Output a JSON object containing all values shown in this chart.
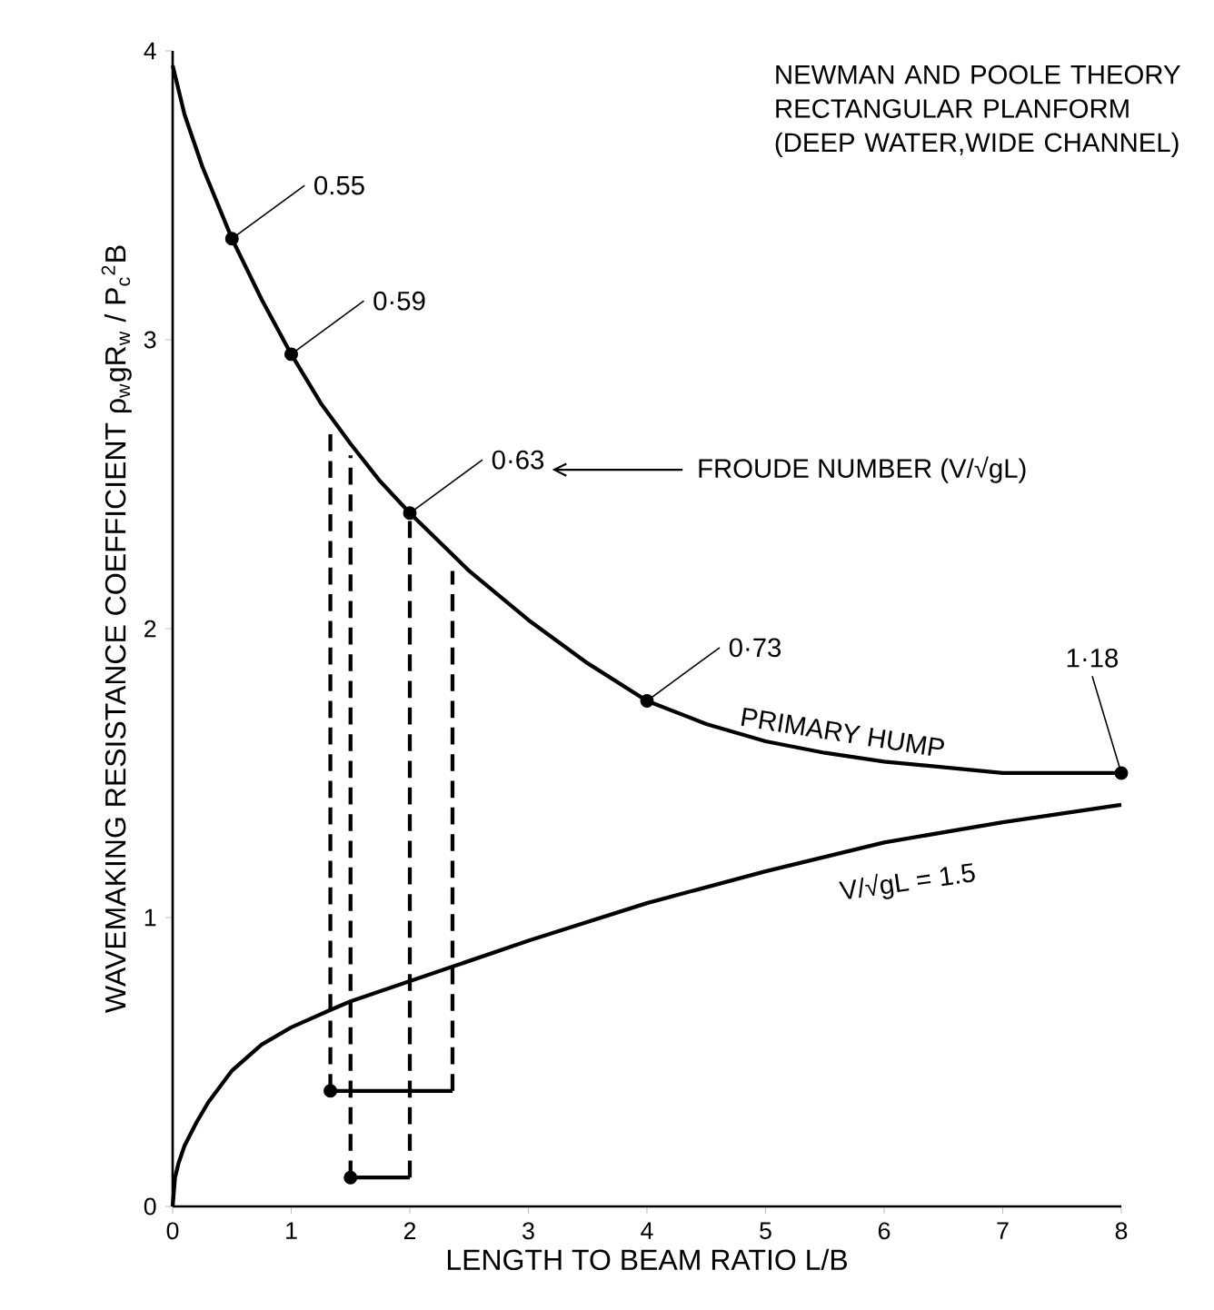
{
  "chart_data": {
    "type": "line",
    "title": "NEWMAN AND POOLE THEORY",
    "subtitle": "RECTANGULAR PLANFORM (DEEP WATER,WIDE CHANNEL)",
    "xlabel": "LENGTH TO BEAM RATIO L/B",
    "ylabel": "WAVEMAKING RESISTANCE COEFFICIENT      ρ$_{w}$gR$_{w}$ / P$_{c}$$^{2}$B",
    "xlim": [
      0,
      8
    ],
    "ylim": [
      0,
      4
    ],
    "xticks": [
      0,
      1,
      2,
      3,
      4,
      5,
      6,
      7,
      8
    ],
    "yticks": [
      0,
      1,
      2,
      3,
      4
    ],
    "grid": false,
    "series": [
      {
        "color": "#000000",
        "line_style": "solid",
        "marker": "none",
        "x": [
          0,
          0.1,
          0.25,
          0.5,
          0.75,
          1,
          1.25,
          1.5,
          1.75,
          2,
          2.5,
          3,
          3.5,
          4,
          4.5,
          5,
          5.5,
          6,
          6.5,
          7,
          7.5,
          8
        ],
        "values": [
          3.95,
          3.78,
          3.6,
          3.35,
          3.14,
          2.95,
          2.78,
          2.64,
          2.51,
          2.4,
          2.2,
          2.03,
          1.88,
          1.75,
          1.67,
          1.61,
          1.57,
          1.54,
          1.52,
          1.5,
          1.5,
          1.5
        ]
      },
      {
        "color": "#000000",
        "line_style": "solid",
        "marker": "none",
        "x": [
          0,
          0.02,
          0.05,
          0.1,
          0.2,
          0.3,
          0.5,
          0.75,
          1,
          1.33,
          1.5,
          2,
          2.36,
          3,
          4,
          5,
          6,
          7,
          8
        ],
        "values": [
          0,
          0.1,
          0.15,
          0.21,
          0.29,
          0.36,
          0.47,
          0.56,
          0.62,
          0.68,
          0.71,
          0.78,
          0.83,
          0.92,
          1.05,
          1.16,
          1.26,
          1.33,
          1.39
        ]
      },
      {
        "type": "scatter",
        "color": "#000000",
        "marker": "circle",
        "x": [
          0.5,
          1,
          2,
          4,
          8
        ],
        "values": [
          3.35,
          2.95,
          2.4,
          1.75,
          1.5
        ]
      },
      {
        "type": "line",
        "color": "#000000",
        "line_style": "dashed",
        "marker": "none",
        "x": [
          1.33,
          1.33
        ],
        "values": [
          0.4,
          2.7
        ]
      },
      {
        "type": "line",
        "color": "#000000",
        "line_style": "dashed",
        "marker": "none",
        "x": [
          1.5,
          1.5
        ],
        "values": [
          0.1,
          2.6
        ]
      },
      {
        "type": "line",
        "color": "#000000",
        "line_style": "dashed",
        "marker": "none",
        "x": [
          2,
          2
        ],
        "values": [
          0.1,
          2.4
        ]
      },
      {
        "type": "line",
        "color": "#000000",
        "line_style": "dashed",
        "marker": "none",
        "x": [
          2.36,
          2.36
        ],
        "values": [
          0.4,
          2.2
        ]
      },
      {
        "type": "line",
        "color": "#000000",
        "line_style": "solid",
        "marker": "none",
        "x": [
          1.33,
          2.36
        ],
        "values": [
          0.4,
          0.4
        ]
      },
      {
        "type": "line",
        "color": "#000000",
        "line_style": "solid",
        "marker": "none",
        "x": [
          1.5,
          2
        ],
        "values": [
          0.1,
          0.1
        ]
      },
      {
        "type": "scatter",
        "color": "#000000",
        "marker": "circle",
        "x": [
          1.33,
          1.5
        ],
        "values": [
          0.4,
          0.1
        ]
      }
    ],
    "annotations": [
      {
        "text": "0.55",
        "x": 0.5,
        "y": 3.35
      },
      {
        "text": "0·59",
        "x": 1,
        "y": 2.95
      },
      {
        "text": "0·63",
        "x": 2,
        "y": 2.4
      },
      {
        "text": "0·73",
        "x": 4,
        "y": 1.75
      },
      {
        "text": "1·18",
        "x": 8,
        "y": 1.5
      },
      "FROUDE NUMBER (V/√gL)",
      "PRIMARY HUMP",
      "V/√gL = 1.5"
    ]
  }
}
